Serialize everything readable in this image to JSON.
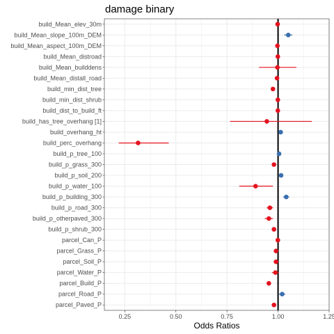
{
  "chart_data": {
    "type": "scatter",
    "title": "damage binary",
    "xlabel": "Odds Ratios",
    "ylabel": "",
    "xlim": [
      0.15,
      1.25
    ],
    "x_ticks": [
      0.25,
      0.5,
      0.75,
      1.0,
      1.25
    ],
    "x_tick_labels": [
      "0.25",
      "0.50",
      "0.75",
      "1.00",
      "1.25"
    ],
    "reference_line": 1.0,
    "grid": true,
    "legend": "none",
    "colors": {
      "above_one": "#3A6FAF",
      "below_one": "#E3131F",
      "reference_line": "#000000",
      "grid": "#EBEBEB",
      "panel_border": "#333333"
    },
    "categories": [
      "build_Mean_elev_30m",
      "build_Mean_slope_100m_DEM",
      "build_Mean_aspect_100m_DEM",
      "build_Mean_distroad",
      "build_Mean_builddens",
      "build_Mean_distall_road",
      "build_min_dist_tree",
      "build_min_dist_shrub",
      "build_dist_to_build_ft",
      "build_has_tree_overhang [1]",
      "build_overhang_ht",
      "build_perc_overhang",
      "build_p_tree_100",
      "build_p_grass_300",
      "build_p_soil_200",
      "build_p_water_100",
      "build_p_building_300",
      "build_p_road_300",
      "build_p_otherpaved_300",
      "build_p_shrub_300",
      "parcel_Can_P",
      "parcel_Grass_P",
      "parcel_Soil_P",
      "parcel_Water_P",
      "parcel_Build_P",
      "parcel_Road_P",
      "parcel_Paved_P"
    ],
    "estimates": [
      0.998,
      1.05,
      0.997,
      0.999,
      0.997,
      0.995,
      0.975,
      0.999,
      0.999,
      0.945,
      1.013,
      0.315,
      1.005,
      0.98,
      1.015,
      0.89,
      1.04,
      0.96,
      0.955,
      0.98,
      0.999,
      0.99,
      0.99,
      0.987,
      0.955,
      1.02,
      0.98
    ],
    "ci_low": [
      0.993,
      1.03,
      0.993,
      0.995,
      0.907,
      0.99,
      0.965,
      0.995,
      0.995,
      0.765,
      1.008,
      0.22,
      1.001,
      0.97,
      1.01,
      0.81,
      1.025,
      0.945,
      0.935,
      0.97,
      0.995,
      0.98,
      0.98,
      0.97,
      0.945,
      1.005,
      0.97
    ],
    "ci_high": [
      1.003,
      1.07,
      1.001,
      1.003,
      1.09,
      1.0,
      0.985,
      1.003,
      1.003,
      1.165,
      1.018,
      0.465,
      1.009,
      0.99,
      1.02,
      0.975,
      1.055,
      0.975,
      0.975,
      0.99,
      1.003,
      1.0,
      1.0,
      1.004,
      0.965,
      1.035,
      0.99
    ]
  }
}
